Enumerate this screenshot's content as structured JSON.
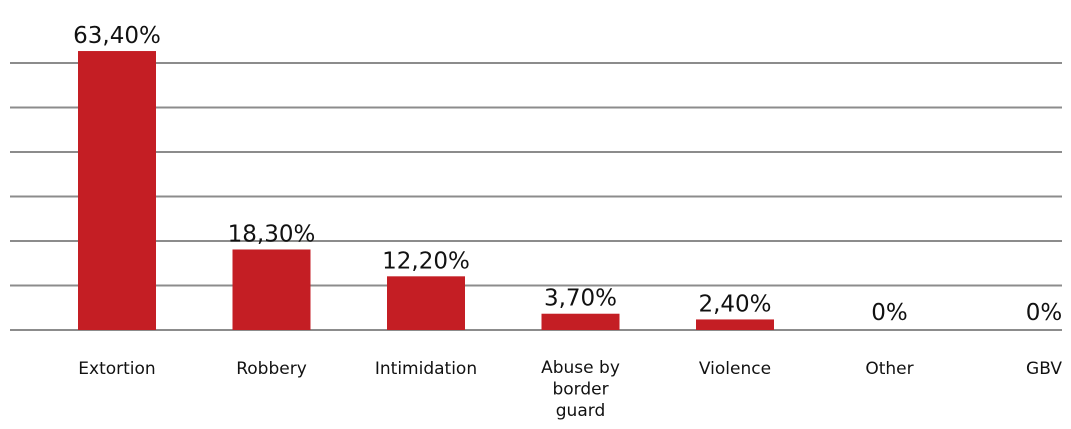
{
  "chart_data": {
    "type": "bar",
    "categories": [
      "Extortion",
      "Robbery",
      "Intimidation",
      "Abuse by border guard",
      "Violence",
      "Other",
      "GBV"
    ],
    "category_label_lines": [
      [
        "Extortion"
      ],
      [
        "Robbery"
      ],
      [
        "Intimidation"
      ],
      [
        "Abuse by",
        "border",
        "guard"
      ],
      [
        "Violence"
      ],
      [
        "Other"
      ],
      [
        "GBV"
      ]
    ],
    "values": [
      63.4,
      18.3,
      12.2,
      3.7,
      2.4,
      0,
      0
    ],
    "data_labels": [
      "63,40%",
      "18,30%",
      "12,20%",
      "3,70%",
      "2,40%",
      "0%",
      "0%"
    ],
    "ylim": [
      0,
      70
    ],
    "grid": true,
    "legend": "none",
    "bar_color": "#c41e24",
    "grid_color": "#8c8c8c",
    "title": "",
    "xlabel": "",
    "ylabel": ""
  }
}
